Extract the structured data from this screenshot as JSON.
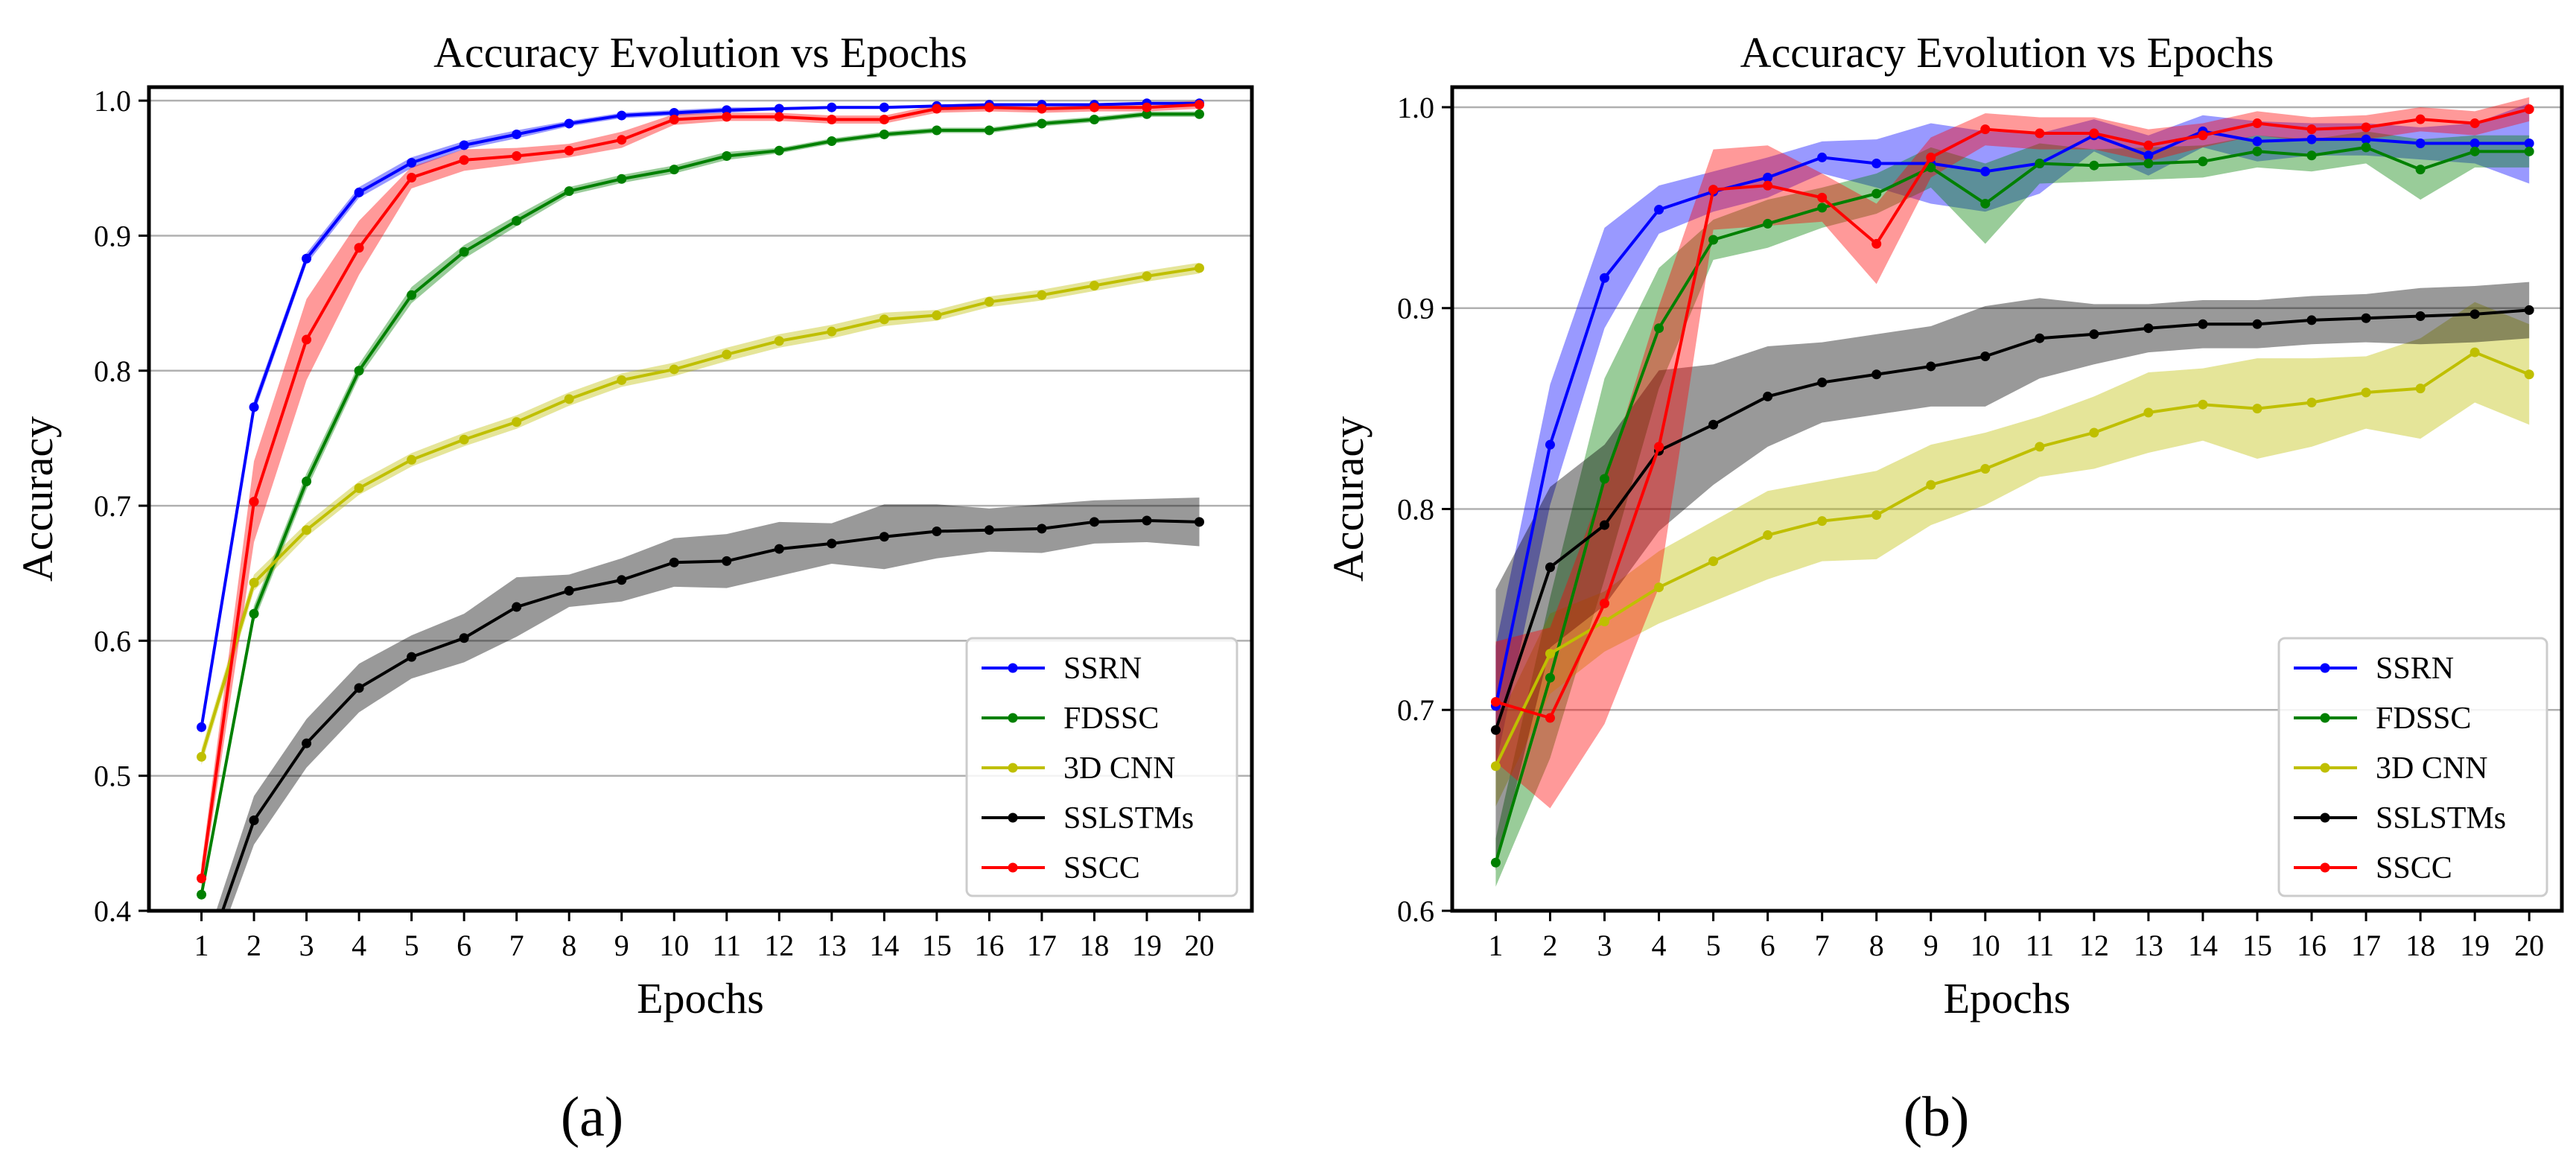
{
  "chart_data": [
    {
      "type": "line",
      "title": "Accuracy Evolution vs Epochs",
      "xlabel": "Epochs",
      "ylabel": "Accuracy",
      "panel_label": "(a)",
      "x": [
        1,
        2,
        3,
        4,
        5,
        6,
        7,
        8,
        9,
        10,
        11,
        12,
        13,
        14,
        15,
        16,
        17,
        18,
        19,
        20
      ],
      "xlim": [
        0,
        21
      ],
      "ylim": [
        0.4,
        1.01
      ],
      "yticks": [
        0.4,
        0.5,
        0.6,
        0.7,
        0.8,
        0.9,
        1.0
      ],
      "ytick_labels": [
        "0.4",
        "0.5",
        "0.6",
        "0.7",
        "0.8",
        "0.9",
        "1.0"
      ],
      "grid": "horizontal",
      "legend_position": "lower-right",
      "series": [
        {
          "name": "SSRN",
          "color": "#0000ff",
          "values": [
            0.536,
            0.773,
            0.883,
            0.932,
            0.954,
            0.967,
            0.975,
            0.983,
            0.989,
            0.991,
            0.993,
            0.994,
            0.995,
            0.995,
            0.996,
            0.997,
            0.997,
            0.997,
            0.998,
            0.998
          ],
          "band": [
            0.005,
            0.005,
            0.004,
            0.004,
            0.004,
            0.003,
            0.003,
            0.002,
            0.002,
            0.002,
            0.002,
            0.001,
            0.001,
            0.001,
            0.001,
            0.001,
            0.001,
            0.001,
            0.001,
            0.001
          ]
        },
        {
          "name": "FDSSC",
          "color": "#008000",
          "values": [
            0.412,
            0.62,
            0.718,
            0.8,
            0.856,
            0.888,
            0.911,
            0.933,
            0.942,
            0.949,
            0.959,
            0.963,
            0.97,
            0.975,
            0.978,
            0.978,
            0.983,
            0.986,
            0.99,
            0.99
          ],
          "band": [
            0.005,
            0.006,
            0.006,
            0.005,
            0.006,
            0.005,
            0.004,
            0.003,
            0.003,
            0.003,
            0.003,
            0.002,
            0.002,
            0.002,
            0.002,
            0.002,
            0.002,
            0.002,
            0.002,
            0.002
          ]
        },
        {
          "name": "3D CNN",
          "color": "#bfbf00",
          "values": [
            0.514,
            0.643,
            0.682,
            0.713,
            0.734,
            0.749,
            0.762,
            0.779,
            0.793,
            0.801,
            0.812,
            0.822,
            0.829,
            0.838,
            0.841,
            0.851,
            0.856,
            0.863,
            0.87,
            0.876
          ],
          "band": [
            0.006,
            0.006,
            0.005,
            0.005,
            0.005,
            0.005,
            0.005,
            0.005,
            0.005,
            0.005,
            0.005,
            0.005,
            0.005,
            0.005,
            0.004,
            0.004,
            0.004,
            0.004,
            0.004,
            0.004
          ]
        },
        {
          "name": "SSLSTMs",
          "color": "#000000",
          "values": [
            0.355,
            0.467,
            0.524,
            0.565,
            0.588,
            0.602,
            0.625,
            0.637,
            0.645,
            0.658,
            0.659,
            0.668,
            0.672,
            0.677,
            0.681,
            0.682,
            0.683,
            0.688,
            0.689,
            0.688
          ],
          "band": [
            0.012,
            0.018,
            0.018,
            0.018,
            0.016,
            0.018,
            0.022,
            0.012,
            0.016,
            0.018,
            0.02,
            0.02,
            0.015,
            0.024,
            0.02,
            0.016,
            0.018,
            0.016,
            0.016,
            0.018
          ]
        },
        {
          "name": "SSCC",
          "color": "#ff0000",
          "values": [
            0.424,
            0.703,
            0.823,
            0.891,
            0.943,
            0.956,
            0.959,
            0.963,
            0.971,
            0.986,
            0.988,
            0.988,
            0.986,
            0.986,
            0.994,
            0.995,
            0.994,
            0.995,
            0.995,
            0.997
          ],
          "band": [
            0.01,
            0.03,
            0.03,
            0.02,
            0.008,
            0.008,
            0.006,
            0.005,
            0.006,
            0.004,
            0.003,
            0.003,
            0.003,
            0.003,
            0.003,
            0.003,
            0.003,
            0.003,
            0.003,
            0.003
          ]
        }
      ]
    },
    {
      "type": "line",
      "title": "Accuracy Evolution vs Epochs",
      "xlabel": "Epochs",
      "ylabel": "Accuracy",
      "panel_label": "(b)",
      "x": [
        1,
        2,
        3,
        4,
        5,
        6,
        7,
        8,
        9,
        10,
        11,
        12,
        13,
        14,
        15,
        16,
        17,
        18,
        19,
        20
      ],
      "xlim": [
        0.2,
        20.6
      ],
      "ylim": [
        0.6,
        1.01
      ],
      "yticks": [
        0.6,
        0.7,
        0.8,
        0.9,
        1.0
      ],
      "ytick_labels": [
        "0.6",
        "0.7",
        "0.8",
        "0.9",
        "1.0"
      ],
      "grid": "horizontal",
      "legend_position": "lower-right",
      "series": [
        {
          "name": "SSRN",
          "color": "#0000ff",
          "values": [
            0.702,
            0.832,
            0.915,
            0.949,
            0.958,
            0.965,
            0.975,
            0.972,
            0.972,
            0.968,
            0.972,
            0.986,
            0.976,
            0.988,
            0.983,
            0.984,
            0.984,
            0.982,
            0.982,
            0.982
          ],
          "band": [
            0.03,
            0.03,
            0.025,
            0.012,
            0.01,
            0.01,
            0.008,
            0.012,
            0.02,
            0.02,
            0.015,
            0.008,
            0.01,
            0.008,
            0.01,
            0.008,
            0.008,
            0.008,
            0.01,
            0.02
          ]
        },
        {
          "name": "FDSSC",
          "color": "#008000",
          "values": [
            0.624,
            0.716,
            0.815,
            0.89,
            0.934,
            0.942,
            0.95,
            0.957,
            0.97,
            0.952,
            0.972,
            0.971,
            0.972,
            0.973,
            0.978,
            0.976,
            0.98,
            0.969,
            0.978,
            0.978
          ],
          "band": [
            0.012,
            0.04,
            0.05,
            0.03,
            0.01,
            0.012,
            0.01,
            0.01,
            0.01,
            0.02,
            0.01,
            0.008,
            0.008,
            0.008,
            0.008,
            0.008,
            0.008,
            0.015,
            0.008,
            0.008
          ]
        },
        {
          "name": "3D CNN",
          "color": "#bfbf00",
          "values": [
            0.672,
            0.728,
            0.744,
            0.761,
            0.774,
            0.787,
            0.794,
            0.797,
            0.812,
            0.82,
            0.831,
            0.838,
            0.848,
            0.852,
            0.85,
            0.853,
            0.858,
            0.86,
            0.878,
            0.867
          ],
          "band": [
            0.02,
            0.02,
            0.015,
            0.018,
            0.02,
            0.022,
            0.02,
            0.022,
            0.02,
            0.018,
            0.015,
            0.018,
            0.02,
            0.018,
            0.025,
            0.022,
            0.018,
            0.025,
            0.025,
            0.025
          ]
        },
        {
          "name": "SSLSTMs",
          "color": "#000000",
          "values": [
            0.69,
            0.771,
            0.792,
            0.829,
            0.842,
            0.856,
            0.863,
            0.867,
            0.871,
            0.876,
            0.885,
            0.887,
            0.89,
            0.892,
            0.892,
            0.894,
            0.895,
            0.896,
            0.897,
            0.899
          ],
          "band": [
            0.07,
            0.04,
            0.04,
            0.04,
            0.03,
            0.025,
            0.02,
            0.02,
            0.02,
            0.025,
            0.02,
            0.015,
            0.012,
            0.012,
            0.012,
            0.012,
            0.012,
            0.014,
            0.014,
            0.014
          ]
        },
        {
          "name": "SSCC",
          "color": "#ff0000",
          "values": [
            0.704,
            0.696,
            0.753,
            0.831,
            0.959,
            0.961,
            0.955,
            0.932,
            0.975,
            0.989,
            0.987,
            0.987,
            0.981,
            0.986,
            0.992,
            0.989,
            0.99,
            0.994,
            0.992,
            0.999
          ],
          "band": [
            0.03,
            0.045,
            0.06,
            0.07,
            0.02,
            0.02,
            0.012,
            0.02,
            0.01,
            0.008,
            0.008,
            0.008,
            0.008,
            0.006,
            0.006,
            0.006,
            0.006,
            0.006,
            0.006,
            0.006
          ]
        }
      ]
    }
  ]
}
